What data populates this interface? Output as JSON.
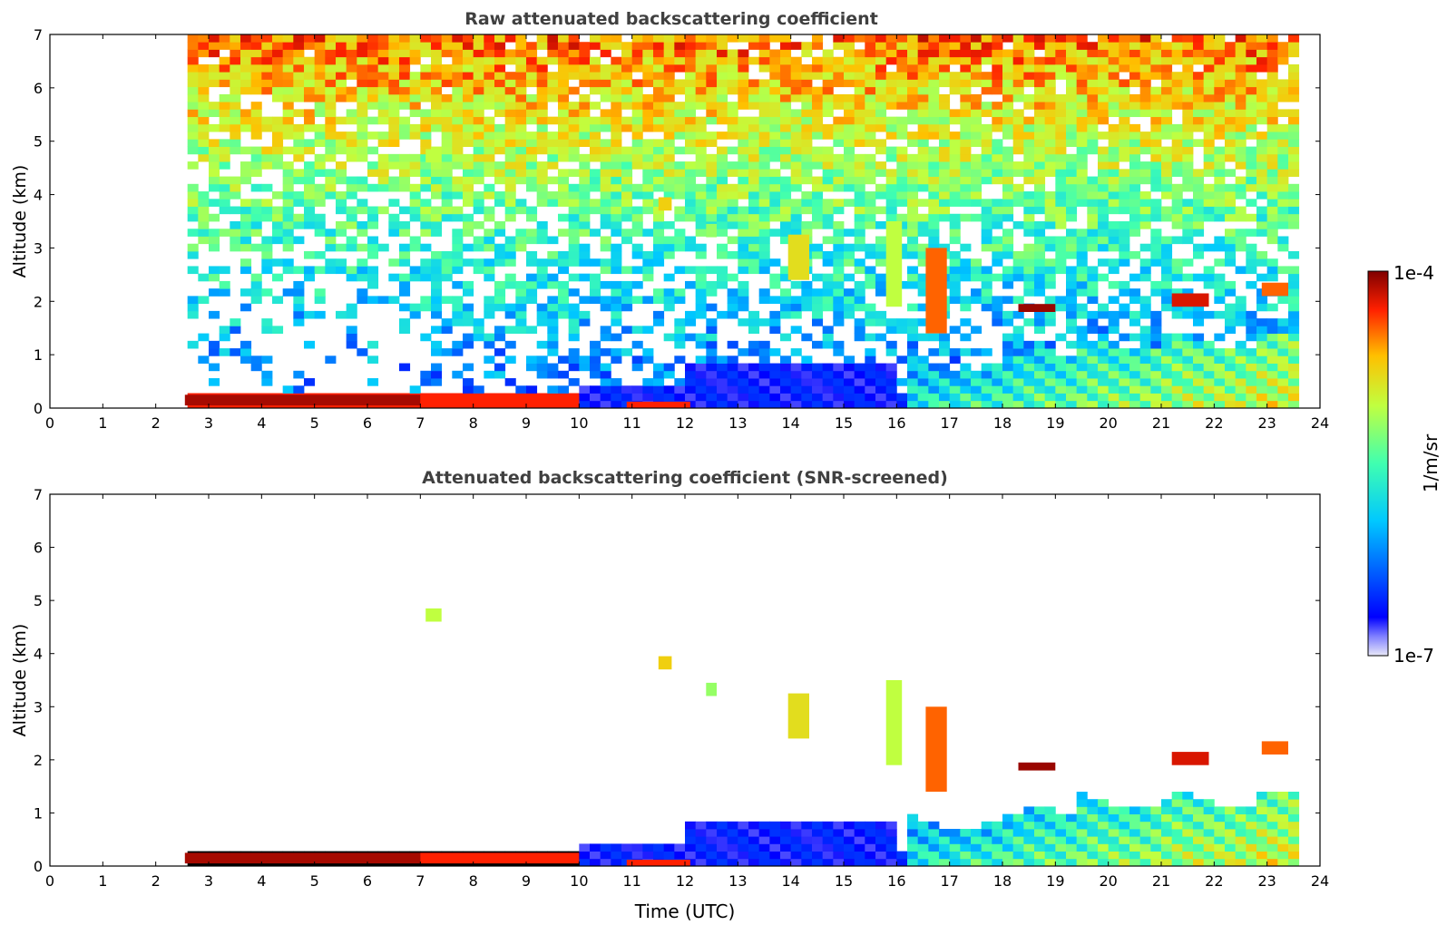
{
  "chart_data": [
    {
      "type": "heatmap",
      "title": "Raw attenuated backscattering coefficient",
      "xlabel": "",
      "ylabel": "Altitude (km)",
      "xlim": [
        0,
        24
      ],
      "ylim": [
        0,
        7
      ],
      "xticks": [
        "0",
        "1",
        "2",
        "3",
        "4",
        "5",
        "6",
        "7",
        "8",
        "9",
        "10",
        "11",
        "12",
        "13",
        "14",
        "15",
        "16",
        "17",
        "18",
        "19",
        "20",
        "21",
        "22",
        "23",
        "24"
      ],
      "yticks": [
        "0",
        "1",
        "2",
        "3",
        "4",
        "5",
        "6",
        "7"
      ],
      "data_start_time": 2.55,
      "data_end_time": 23.6,
      "features": [
        {
          "name": "surface-aerosol-layer",
          "t0": 2.55,
          "t1": 7.0,
          "alt0": 0.05,
          "alt1": 0.25,
          "level": 0.97
        },
        {
          "name": "residual-surface-layer",
          "t0": 7.0,
          "t1": 10.0,
          "alt0": 0.05,
          "alt1": 0.25,
          "level": 0.9
        },
        {
          "name": "low-aerosol-layer",
          "t0": 10.9,
          "t1": 12.1,
          "alt0": 0.0,
          "alt1": 0.12,
          "level": 0.9
        },
        {
          "name": "lofted-cloud-7h",
          "t0": 7.1,
          "t1": 7.4,
          "alt0": 4.6,
          "alt1": 4.85,
          "level": 0.65
        },
        {
          "name": "cloud-11-6h",
          "t0": 11.5,
          "t1": 11.75,
          "alt0": 3.7,
          "alt1": 3.95,
          "level": 0.75
        },
        {
          "name": "cloud-12-5h",
          "t0": 12.4,
          "t1": 12.6,
          "alt0": 3.2,
          "alt1": 3.45,
          "level": 0.6
        },
        {
          "name": "cloud-14h",
          "t0": 13.95,
          "t1": 14.35,
          "alt0": 2.4,
          "alt1": 3.25,
          "level": 0.72
        },
        {
          "name": "cloud-15-9h",
          "t0": 15.8,
          "t1": 16.1,
          "alt0": 1.9,
          "alt1": 3.5,
          "level": 0.65
        },
        {
          "name": "cloud-16-8h",
          "t0": 16.55,
          "t1": 16.95,
          "alt0": 1.4,
          "alt1": 3.0,
          "level": 0.85
        },
        {
          "name": "cloud-top-19h",
          "t0": 18.3,
          "t1": 19.0,
          "alt0": 1.8,
          "alt1": 1.95,
          "level": 0.98
        },
        {
          "name": "cloud-top-21-5h",
          "t0": 21.2,
          "t1": 21.9,
          "alt0": 1.9,
          "alt1": 2.15,
          "level": 0.93
        },
        {
          "name": "cloud-top-23h",
          "t0": 22.9,
          "t1": 23.4,
          "alt0": 2.1,
          "alt1": 2.35,
          "level": 0.85
        }
      ]
    },
    {
      "type": "heatmap",
      "title": "Attenuated backscattering coefficient (SNR-screened)",
      "xlabel": "Time (UTC)",
      "ylabel": "Altitude (km)",
      "xlim": [
        0,
        24
      ],
      "ylim": [
        0,
        7
      ],
      "xticks": [
        "0",
        "1",
        "2",
        "3",
        "4",
        "5",
        "6",
        "7",
        "8",
        "9",
        "10",
        "11",
        "12",
        "13",
        "14",
        "15",
        "16",
        "17",
        "18",
        "19",
        "20",
        "21",
        "22",
        "23",
        "24"
      ],
      "yticks": [
        "0",
        "1",
        "2",
        "3",
        "4",
        "5",
        "6",
        "7"
      ],
      "data_start_time": 2.55,
      "data_end_time": 23.6
    }
  ],
  "colorbar": {
    "label": "1/m/sr",
    "min_label": "1e-7",
    "max_label": "1e-4",
    "colormap": "jet"
  },
  "colors": {
    "title": "#404040",
    "axis": "#000000",
    "saturated": "#000000"
  }
}
